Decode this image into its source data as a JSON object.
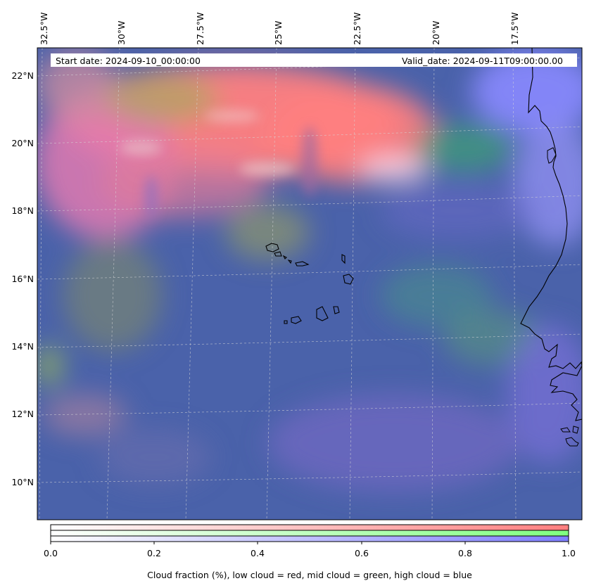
{
  "header": {
    "start_date": "Start date: 2024-09-10_00:00:00",
    "valid_date": "Valid_date: 2024-09-11T09:00:00.00"
  },
  "map": {
    "lon_labels": [
      "32.5°W",
      "30°W",
      "27.5°W",
      "25°W",
      "22.5°W",
      "20°W",
      "17.5°W"
    ],
    "lat_labels": [
      "22°N",
      "20°N",
      "18°N",
      "16°N",
      "14°N",
      "12°N",
      "10°N"
    ],
    "colors": {
      "low_cloud": "#ff7f7f",
      "mid_cloud": "#80ff80",
      "high_cloud": "#7f7fff",
      "clear_background": "#4a62aa",
      "coastline": "#000000"
    }
  },
  "colorbar": {
    "ticks": [
      "0.0",
      "0.2",
      "0.4",
      "0.6",
      "0.8",
      "1.0"
    ],
    "bands": [
      "low cloud = red",
      "mid cloud = green",
      "high cloud = blue"
    ],
    "caption": "Cloud fraction (%), low cloud = red, mid cloud = green, high cloud = blue"
  }
}
